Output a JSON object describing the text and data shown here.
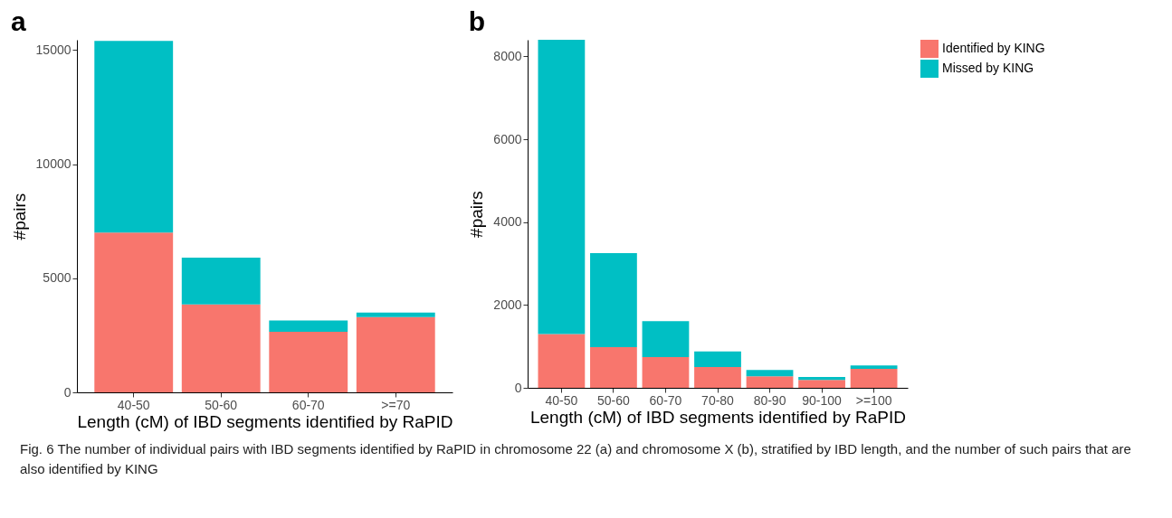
{
  "chart_data": [
    {
      "type": "bar",
      "title": "a",
      "xlabel": "Length (cM) of IBD segments identified by RaPID",
      "ylabel": "#pairs",
      "categories": [
        "40-50",
        "50-60",
        "60-70",
        ">=70"
      ],
      "stacked": true,
      "ylim": [
        0,
        15450
      ],
      "yticks": [
        0,
        5000,
        10000,
        15000
      ],
      "grid": false,
      "legend": false,
      "series": [
        {
          "color": "#f8766d",
          "values": [
            7000,
            3850,
            2650,
            3300
          ]
        },
        {
          "color": "#00bfc4",
          "values": [
            8400,
            2050,
            500,
            200
          ]
        }
      ],
      "annotations": [
        "Fig. 6 The number of individual pairs with IBD segments identified by RaPID in chromosome 22 (a) and chromosome X (b), stratified by IBD length, and the number of such pairs that are also identified by KING"
      ]
    },
    {
      "type": "bar",
      "title": "b",
      "xlabel": "Length (cM) of IBD segments identified by RaPID",
      "ylabel": "#pairs",
      "categories": [
        "40-50",
        "50-60",
        "60-70",
        "70-80",
        "80-90",
        "90-100",
        ">=100"
      ],
      "stacked": true,
      "ylim": [
        0,
        8400
      ],
      "yticks": [
        0,
        2000,
        4000,
        6000,
        8000
      ],
      "grid": false,
      "legend": "right",
      "series": [
        {
          "name": "Identified by KING",
          "color": "#f8766d",
          "values": [
            1300,
            980,
            740,
            500,
            280,
            190,
            460
          ]
        },
        {
          "name": "Missed by KING",
          "color": "#00bfc4",
          "values": [
            7100,
            2270,
            870,
            380,
            150,
            70,
            80
          ]
        }
      ]
    }
  ]
}
